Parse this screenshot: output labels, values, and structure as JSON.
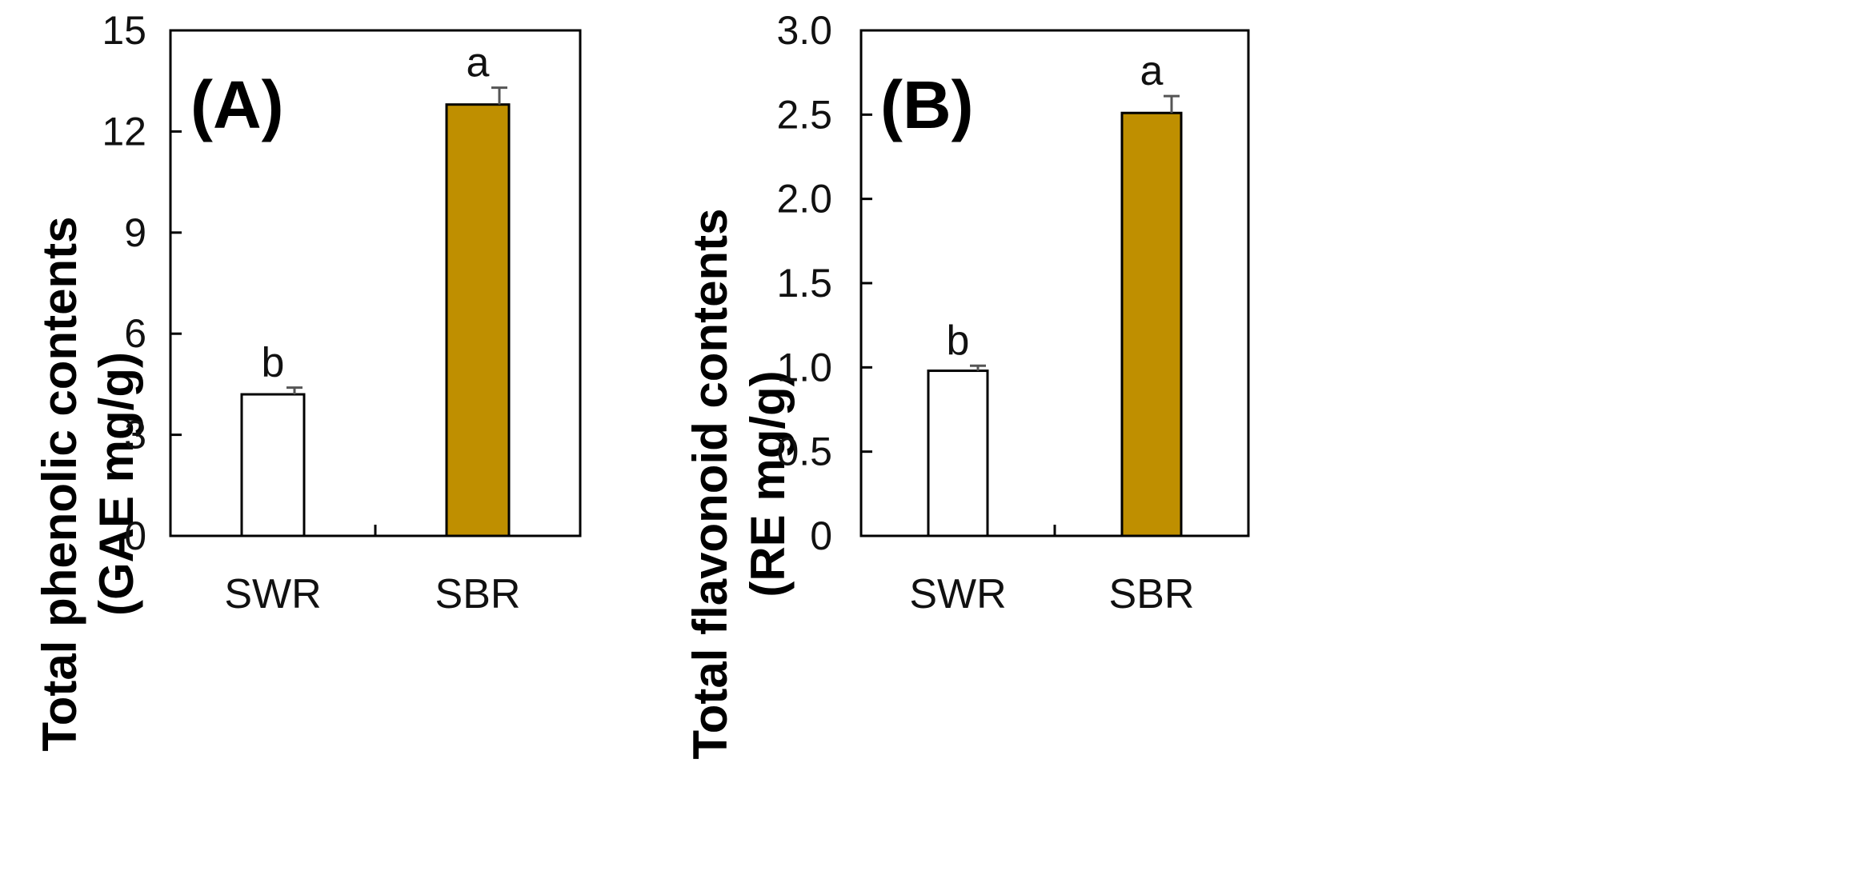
{
  "chart_data": [
    {
      "type": "bar",
      "panel_label": "(A)",
      "ylabel_line1": "Total phenolic contents",
      "ylabel_line2": "(GAE mg/g)",
      "categories": [
        "SWR",
        "SBR"
      ],
      "values": [
        4.2,
        12.8
      ],
      "errors": [
        0.2,
        0.5
      ],
      "significance": [
        "b",
        "a"
      ],
      "bar_colors": [
        "#ffffff",
        "#bf8f00"
      ],
      "ylim": [
        0,
        15
      ],
      "yticks": [
        0,
        3,
        6,
        9,
        12,
        15
      ],
      "ytick_labels": [
        "0",
        "3",
        "6",
        "9",
        "12",
        "15"
      ]
    },
    {
      "type": "bar",
      "panel_label": "(B)",
      "ylabel_line1": "Total flavonoid contents",
      "ylabel_line2": "(RE mg/g)",
      "categories": [
        "SWR",
        "SBR"
      ],
      "values": [
        0.98,
        2.51
      ],
      "errors": [
        0.03,
        0.1
      ],
      "significance": [
        "b",
        "a"
      ],
      "bar_colors": [
        "#ffffff",
        "#bf8f00"
      ],
      "ylim": [
        0,
        3.0
      ],
      "yticks": [
        0,
        0.5,
        1.0,
        1.5,
        2.0,
        2.5,
        3.0
      ],
      "ytick_labels": [
        "0",
        "0.5",
        "1.0",
        "1.5",
        "2.0",
        "2.5",
        "3.0"
      ]
    }
  ]
}
